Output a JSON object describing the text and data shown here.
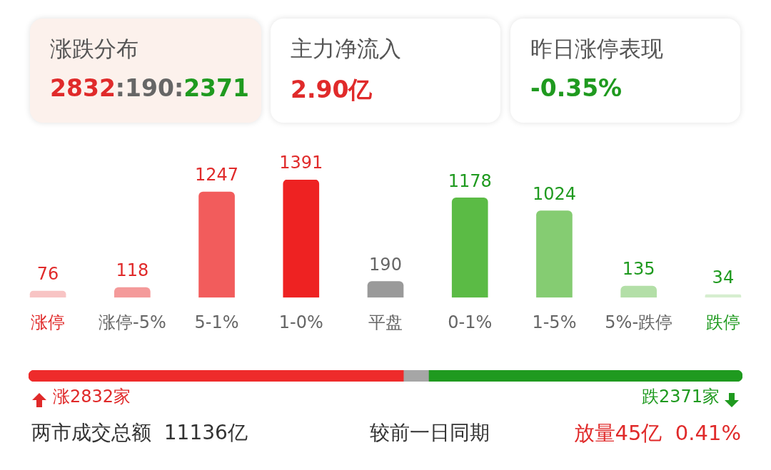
{
  "chart_data": [
    {
      "type": "other",
      "annotations": [
        "涨跌分布",
        "2832",
        ":190:",
        "2371",
        "主力净流入",
        "2.90亿",
        "昨日涨停表现",
        "-0.35%"
      ]
    },
    {
      "type": "bar",
      "categories": [
        "涨停",
        "涨停-5%",
        "5-1%",
        "1-0%",
        "平盘",
        "0-1%",
        "1-5%",
        "5%-跌停",
        "跌停"
      ],
      "values": [
        76,
        118,
        1247,
        1391,
        190,
        1178,
        1024,
        135,
        34
      ],
      "colors": [
        "#f8c4c4",
        "#f49a9a",
        "#f25c5c",
        "#ee2222",
        "#9a9a9a",
        "#5bbb45",
        "#85cc72",
        "#b3dfa7",
        "#d6eecf"
      ],
      "data_labels": true,
      "grid": false,
      "legend": false
    },
    {
      "type": "bar",
      "orientation": "horizontal",
      "stacked": true,
      "categories": [
        null
      ],
      "series": [
        {
          "color": "#ee2b2b",
          "values": [
            2832
          ],
          "value_labels": [
            "涨2832家"
          ]
        },
        {
          "color": "#a6a6a6",
          "values": [
            190
          ],
          "value_labels": [
            null
          ]
        },
        {
          "color": "#1f9a1f",
          "values": [
            2371
          ],
          "value_labels": [
            "跌2371家"
          ]
        }
      ],
      "annotations": [
        "两市成交总额  11136亿",
        "较前一日同期",
        "放量45亿  0.41%"
      ],
      "legend": false
    }
  ]
}
